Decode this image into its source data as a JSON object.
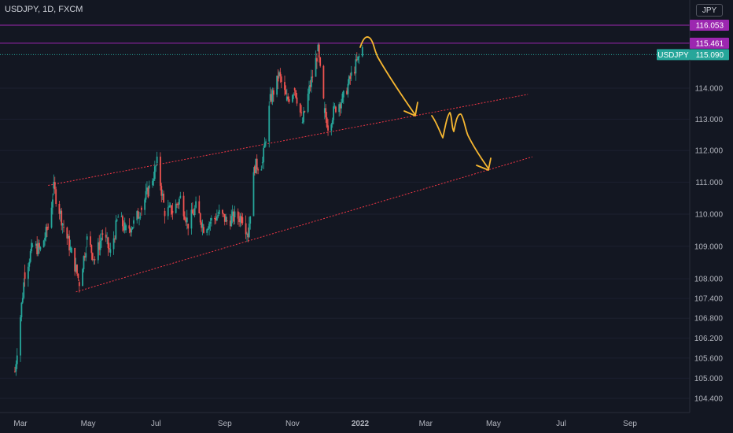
{
  "header": {
    "symbol_title": "USDJPY, 1D, FXCM",
    "currency": "JPY"
  },
  "chart_data": {
    "type": "candlestick",
    "symbol": "USDJPY",
    "timeframe": "1D",
    "source": "FXCM",
    "y_axis": {
      "ticks": [
        "116.053",
        "115.461",
        "115.090",
        "114.000",
        "113.000",
        "112.000",
        "111.000",
        "110.000",
        "109.000",
        "108.000",
        "107.400",
        "106.800",
        "106.200",
        "105.600",
        "105.000",
        "104.400"
      ],
      "scale": "logarithmic"
    },
    "x_axis": {
      "ticks": [
        "Mar",
        "May",
        "Jul",
        "Sep",
        "Nov",
        "2022",
        "Mar",
        "May",
        "Jul",
        "Sep"
      ]
    },
    "price_badges": [
      {
        "label": "",
        "value": "116.053",
        "color": "#9c27b0"
      },
      {
        "label": "",
        "value": "115.461",
        "color": "#9c27b0"
      },
      {
        "label": "USDJPY",
        "value": "115.090",
        "color": "#26a69a"
      }
    ],
    "price_path": [
      [
        "2021-02-24",
        105.2
      ],
      [
        "2021-03-05",
        108.2
      ],
      [
        "2021-03-12",
        109.0
      ],
      [
        "2021-03-19",
        108.9
      ],
      [
        "2021-03-26",
        109.6
      ],
      [
        "2021-03-31",
        110.8
      ],
      [
        "2021-04-09",
        109.6
      ],
      [
        "2021-04-16",
        108.8
      ],
      [
        "2021-04-23",
        107.9
      ],
      [
        "2021-04-30",
        109.2
      ],
      [
        "2021-05-07",
        108.6
      ],
      [
        "2021-05-14",
        109.4
      ],
      [
        "2021-05-21",
        108.8
      ],
      [
        "2021-05-28",
        109.9
      ],
      [
        "2021-06-04",
        109.5
      ],
      [
        "2021-06-11",
        109.7
      ],
      [
        "2021-06-18",
        110.2
      ],
      [
        "2021-06-25",
        110.8
      ],
      [
        "2021-07-02",
        111.6
      ],
      [
        "2021-07-09",
        110.1
      ],
      [
        "2021-07-16",
        110.1
      ],
      [
        "2021-07-23",
        110.5
      ],
      [
        "2021-07-30",
        109.7
      ],
      [
        "2021-08-06",
        110.2
      ],
      [
        "2021-08-13",
        109.6
      ],
      [
        "2021-08-20",
        109.8
      ],
      [
        "2021-08-27",
        110.0
      ],
      [
        "2021-09-03",
        109.8
      ],
      [
        "2021-09-10",
        109.9
      ],
      [
        "2021-09-17",
        109.9
      ],
      [
        "2021-09-22",
        109.4
      ],
      [
        "2021-09-28",
        111.5
      ],
      [
        "2021-10-05",
        111.6
      ],
      [
        "2021-10-12",
        113.6
      ],
      [
        "2021-10-20",
        114.4
      ],
      [
        "2021-10-27",
        113.6
      ],
      [
        "2021-11-03",
        114.0
      ],
      [
        "2021-11-10",
        112.9
      ],
      [
        "2021-11-17",
        114.1
      ],
      [
        "2021-11-24",
        115.2
      ],
      [
        "2021-11-30",
        113.2
      ],
      [
        "2021-12-03",
        112.8
      ],
      [
        "2021-12-10",
        113.4
      ],
      [
        "2021-12-17",
        113.7
      ],
      [
        "2021-12-24",
        114.4
      ],
      [
        "2021-12-31",
        115.0
      ],
      [
        "2022-01-04",
        115.4
      ]
    ],
    "overlays": {
      "horizontal_lines": [
        {
          "price": 116.053,
          "color": "#9c27b0"
        },
        {
          "price": 115.461,
          "color": "#9c27b0"
        },
        {
          "price": 115.09,
          "color": "#26a69a",
          "style": "dotted"
        }
      ],
      "trendlines": [
        {
          "from": [
            "2021-03-26",
            110.9
          ],
          "to": [
            "2022-06-01",
            113.8
          ],
          "color": "#f23645",
          "style": "dotted"
        },
        {
          "from": [
            "2021-04-20",
            107.6
          ],
          "to": [
            "2022-06-05",
            111.8
          ],
          "color": "#f23645",
          "style": "dotted"
        }
      ],
      "forecast_path_color": "#f7b731"
    }
  }
}
